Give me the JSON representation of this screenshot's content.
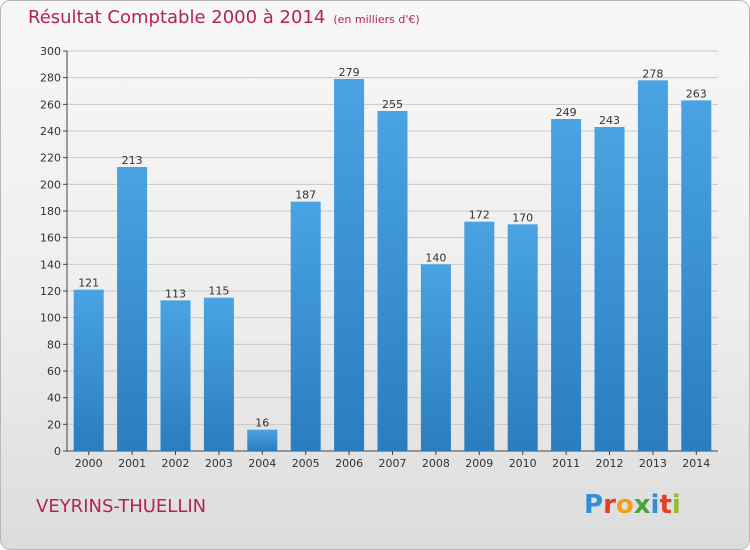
{
  "header": {
    "title": "Résultat Comptable 2000 à 2014",
    "unit": "(en milliers d'€)"
  },
  "footer": {
    "commune": "VEYRINS-THUELLIN",
    "logo_letters": [
      "P",
      "r",
      "o",
      "x",
      "i",
      "t",
      "i"
    ],
    "logo_colors": [
      "#2f8fd8",
      "#e0402a",
      "#f2a01c",
      "#4aa63c",
      "#2f8fd8",
      "#e0402a",
      "#8fbf2a"
    ]
  },
  "colors": {
    "bar": "#4aa3e2",
    "bar_dark": "#2a7dbf",
    "title": "#b3225a",
    "axis_text": "#333333"
  },
  "chart_data": {
    "type": "bar",
    "title": "Résultat Comptable 2000 à 2014",
    "categories": [
      "2000",
      "2001",
      "2002",
      "2003",
      "2004",
      "2005",
      "2006",
      "2007",
      "2008",
      "2009",
      "2010",
      "2011",
      "2012",
      "2013",
      "2014"
    ],
    "values": [
      121,
      213,
      113,
      115,
      16,
      187,
      279,
      255,
      140,
      172,
      170,
      249,
      243,
      278,
      263
    ],
    "ylim": [
      0,
      300
    ],
    "yticks": [
      0,
      20,
      40,
      60,
      80,
      100,
      120,
      140,
      160,
      180,
      200,
      220,
      240,
      260,
      280,
      300
    ],
    "grid": true,
    "legend": "none"
  }
}
